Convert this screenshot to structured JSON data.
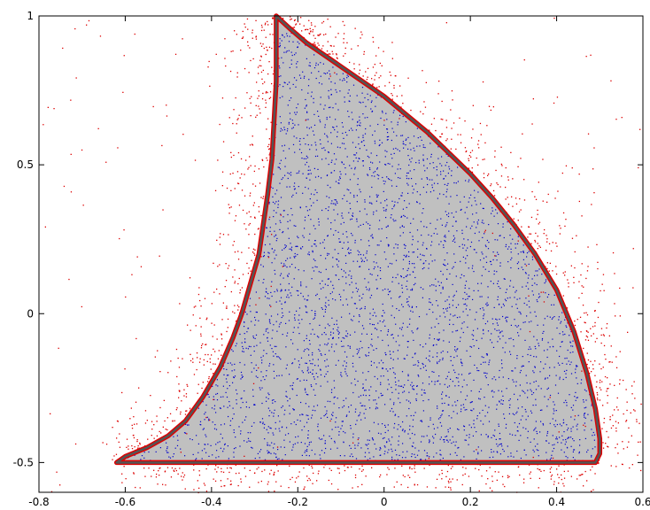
{
  "chart_data": {
    "type": "scatter",
    "title": "",
    "xlabel": "",
    "ylabel": "",
    "xlim": [
      -0.8,
      0.6
    ],
    "ylim": [
      -0.6,
      1.0
    ],
    "grid": false,
    "legend": "none",
    "x_ticks": [
      -0.8,
      -0.6,
      -0.4,
      -0.2,
      0,
      0.2,
      0.4,
      0.6
    ],
    "x_tick_labels": [
      "-0.8",
      "-0.6",
      "-0.4",
      "-0.2",
      "0",
      "0.2",
      "0.4",
      "0.6"
    ],
    "y_ticks": [
      -0.5,
      0,
      0.5,
      1
    ],
    "y_tick_labels": [
      "-0.5",
      "0",
      "0.5",
      "1"
    ],
    "region": {
      "fill_color": "#c0c0c0",
      "edge_color": "#555555",
      "vertices": [
        [
          -0.25,
          1.0
        ],
        [
          -0.22,
          0.96
        ],
        [
          -0.18,
          0.91
        ],
        [
          -0.14,
          0.87
        ],
        [
          -0.1,
          0.83
        ],
        [
          -0.05,
          0.78
        ],
        [
          0.0,
          0.73
        ],
        [
          0.05,
          0.67
        ],
        [
          0.1,
          0.61
        ],
        [
          0.15,
          0.54
        ],
        [
          0.2,
          0.47
        ],
        [
          0.25,
          0.39
        ],
        [
          0.3,
          0.3
        ],
        [
          0.35,
          0.2
        ],
        [
          0.4,
          0.08
        ],
        [
          0.44,
          -0.06
        ],
        [
          0.47,
          -0.2
        ],
        [
          0.49,
          -0.32
        ],
        [
          0.5,
          -0.42
        ],
        [
          0.5,
          -0.47
        ],
        [
          0.49,
          -0.5
        ],
        [
          -0.62,
          -0.5
        ],
        [
          -0.6,
          -0.48
        ],
        [
          -0.55,
          -0.45
        ],
        [
          -0.5,
          -0.41
        ],
        [
          -0.46,
          -0.36
        ],
        [
          -0.42,
          -0.28
        ],
        [
          -0.38,
          -0.18
        ],
        [
          -0.35,
          -0.08
        ],
        [
          -0.33,
          0.0
        ],
        [
          -0.31,
          0.1
        ],
        [
          -0.29,
          0.2
        ],
        [
          -0.28,
          0.3
        ],
        [
          -0.27,
          0.4
        ],
        [
          -0.26,
          0.52
        ],
        [
          -0.255,
          0.65
        ],
        [
          -0.25,
          0.78
        ],
        [
          -0.25,
          0.9
        ],
        [
          -0.25,
          1.0
        ]
      ]
    },
    "series": [
      {
        "marker": "dot",
        "color": "#0000cc",
        "count_estimate": 3500
      },
      {
        "marker": "dot",
        "color": "#dd0000",
        "count_estimate": 2500
      },
      {
        "marker": "line",
        "color": "#dd0000"
      }
    ]
  }
}
